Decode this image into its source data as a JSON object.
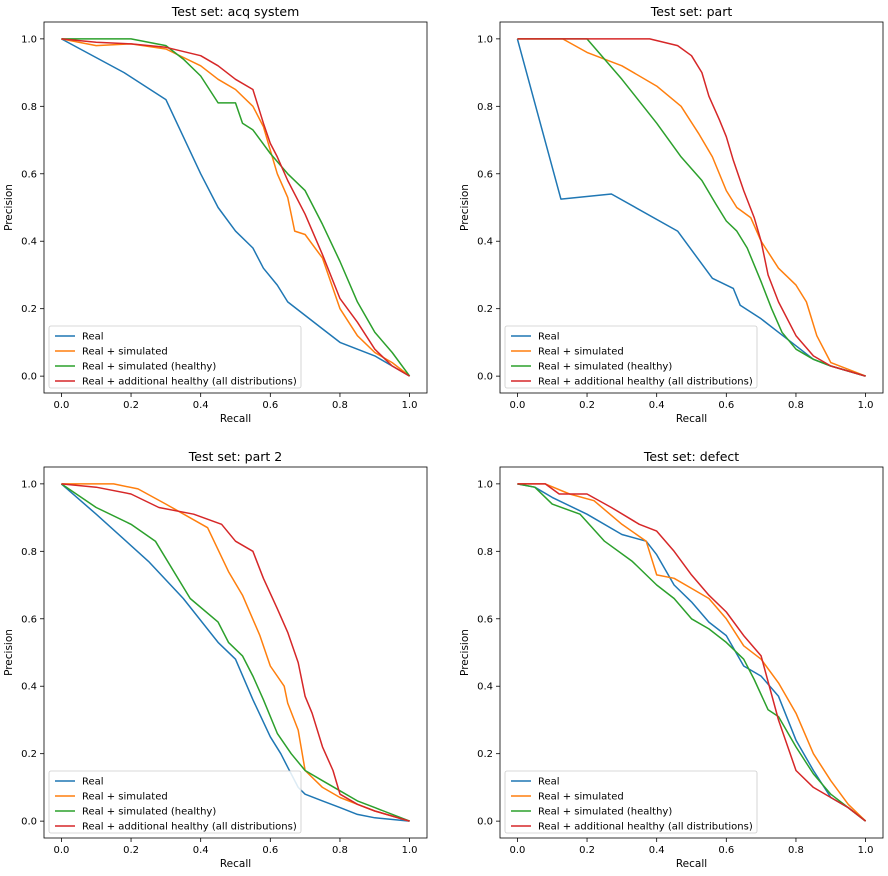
{
  "series_styles": [
    {
      "name": "Real",
      "color": "#1f77b4"
    },
    {
      "name": "Real + simulated",
      "color": "#ff7f0e"
    },
    {
      "name": "Real + simulated (healthy)",
      "color": "#2ca02c"
    },
    {
      "name": "Real + additional healthy (all distributions)",
      "color": "#d62728"
    }
  ],
  "chart_data": [
    {
      "type": "line",
      "title": "Test set: acq system",
      "xlabel": "Recall",
      "ylabel": "Precision",
      "xlim": [
        -0.05,
        1.05
      ],
      "ylim": [
        -0.05,
        1.05
      ],
      "xticks": [
        "0.0",
        "0.2",
        "0.4",
        "0.6",
        "0.8",
        "1.0"
      ],
      "yticks": [
        "0.0",
        "0.2",
        "0.4",
        "0.6",
        "0.8",
        "1.0"
      ],
      "grid": false,
      "legend": "lower-left",
      "series": [
        {
          "name": "Real",
          "color": "#1f77b4",
          "x": [
            0,
            0.18,
            0.3,
            0.4,
            0.45,
            0.5,
            0.55,
            0.58,
            0.62,
            0.65,
            0.7,
            0.75,
            0.8,
            0.85,
            0.9,
            0.95,
            1.0
          ],
          "y": [
            1.0,
            0.9,
            0.82,
            0.6,
            0.5,
            0.43,
            0.38,
            0.32,
            0.27,
            0.22,
            0.18,
            0.14,
            0.1,
            0.08,
            0.06,
            0.03,
            0.0
          ]
        },
        {
          "name": "Real + simulated",
          "color": "#ff7f0e",
          "x": [
            0,
            0.1,
            0.2,
            0.3,
            0.4,
            0.45,
            0.5,
            0.55,
            0.58,
            0.6,
            0.62,
            0.65,
            0.67,
            0.7,
            0.75,
            0.8,
            0.85,
            0.9,
            0.95,
            1.0
          ],
          "y": [
            1.0,
            0.98,
            0.985,
            0.97,
            0.92,
            0.88,
            0.85,
            0.8,
            0.74,
            0.67,
            0.6,
            0.53,
            0.43,
            0.42,
            0.35,
            0.2,
            0.12,
            0.07,
            0.04,
            0.0
          ]
        },
        {
          "name": "Real + simulated (healthy)",
          "color": "#2ca02c",
          "x": [
            0,
            0.1,
            0.2,
            0.3,
            0.35,
            0.4,
            0.45,
            0.5,
            0.52,
            0.55,
            0.6,
            0.65,
            0.7,
            0.75,
            0.8,
            0.85,
            0.9,
            0.95,
            1.0
          ],
          "y": [
            1.0,
            1.0,
            1.0,
            0.98,
            0.94,
            0.89,
            0.81,
            0.81,
            0.75,
            0.73,
            0.66,
            0.6,
            0.55,
            0.45,
            0.34,
            0.22,
            0.13,
            0.07,
            0.0
          ]
        },
        {
          "name": "Real + additional healthy (all distributions)",
          "color": "#d62728",
          "x": [
            0,
            0.1,
            0.2,
            0.3,
            0.4,
            0.45,
            0.5,
            0.55,
            0.58,
            0.6,
            0.62,
            0.65,
            0.7,
            0.75,
            0.8,
            0.85,
            0.9,
            0.95,
            1.0
          ],
          "y": [
            1.0,
            0.99,
            0.985,
            0.975,
            0.95,
            0.92,
            0.88,
            0.85,
            0.75,
            0.69,
            0.65,
            0.58,
            0.48,
            0.36,
            0.23,
            0.16,
            0.08,
            0.03,
            0.0
          ]
        }
      ]
    },
    {
      "type": "line",
      "title": "Test set: part",
      "xlabel": "Recall",
      "ylabel": "Precision",
      "xlim": [
        -0.05,
        1.05
      ],
      "ylim": [
        -0.05,
        1.05
      ],
      "xticks": [
        "0.0",
        "0.2",
        "0.4",
        "0.6",
        "0.8",
        "1.0"
      ],
      "yticks": [
        "0.0",
        "0.2",
        "0.4",
        "0.6",
        "0.8",
        "1.0"
      ],
      "grid": false,
      "legend": "lower-left",
      "series": [
        {
          "name": "Real",
          "color": "#1f77b4",
          "x": [
            0,
            0.125,
            0.27,
            0.46,
            0.56,
            0.62,
            0.64,
            0.7,
            0.75,
            0.8,
            0.85,
            0.9,
            1.0
          ],
          "y": [
            1.0,
            0.525,
            0.54,
            0.43,
            0.29,
            0.26,
            0.21,
            0.17,
            0.13,
            0.09,
            0.05,
            0.03,
            0.0
          ]
        },
        {
          "name": "Real + simulated",
          "color": "#ff7f0e",
          "x": [
            0,
            0.13,
            0.2,
            0.3,
            0.4,
            0.47,
            0.52,
            0.56,
            0.6,
            0.63,
            0.67,
            0.7,
            0.75,
            0.8,
            0.83,
            0.86,
            0.9,
            1.0
          ],
          "y": [
            1.0,
            1.0,
            0.96,
            0.92,
            0.86,
            0.8,
            0.72,
            0.65,
            0.55,
            0.5,
            0.47,
            0.4,
            0.32,
            0.27,
            0.22,
            0.12,
            0.04,
            0.0
          ]
        },
        {
          "name": "Real + simulated (healthy)",
          "color": "#2ca02c",
          "x": [
            0,
            0.2,
            0.3,
            0.4,
            0.47,
            0.53,
            0.57,
            0.6,
            0.63,
            0.66,
            0.7,
            0.73,
            0.76,
            0.8,
            0.85,
            0.9,
            1.0
          ],
          "y": [
            1.0,
            1.0,
            0.88,
            0.75,
            0.65,
            0.58,
            0.51,
            0.46,
            0.43,
            0.38,
            0.28,
            0.2,
            0.13,
            0.08,
            0.05,
            0.03,
            0.0
          ]
        },
        {
          "name": "Real + additional healthy (all distributions)",
          "color": "#d62728",
          "x": [
            0,
            0.2,
            0.38,
            0.46,
            0.5,
            0.53,
            0.55,
            0.58,
            0.6,
            0.62,
            0.65,
            0.68,
            0.7,
            0.72,
            0.75,
            0.8,
            0.85,
            0.9,
            1.0
          ],
          "y": [
            1.0,
            1.0,
            1.0,
            0.98,
            0.95,
            0.9,
            0.83,
            0.76,
            0.71,
            0.64,
            0.55,
            0.47,
            0.4,
            0.3,
            0.22,
            0.12,
            0.06,
            0.03,
            0.0
          ]
        }
      ]
    },
    {
      "type": "line",
      "title": "Test set: part 2",
      "xlabel": "Recall",
      "ylabel": "Precision",
      "xlim": [
        -0.05,
        1.05
      ],
      "ylim": [
        -0.05,
        1.05
      ],
      "xticks": [
        "0.0",
        "0.2",
        "0.4",
        "0.6",
        "0.8",
        "1.0"
      ],
      "yticks": [
        "0.0",
        "0.2",
        "0.4",
        "0.6",
        "0.8",
        "1.0"
      ],
      "grid": false,
      "legend": "lower-left",
      "series": [
        {
          "name": "Real",
          "color": "#1f77b4",
          "x": [
            0,
            0.1,
            0.25,
            0.35,
            0.45,
            0.5,
            0.55,
            0.6,
            0.63,
            0.65,
            0.68,
            0.7,
            0.75,
            0.8,
            0.85,
            0.9,
            1.0
          ],
          "y": [
            1.0,
            0.91,
            0.77,
            0.66,
            0.53,
            0.48,
            0.36,
            0.25,
            0.2,
            0.16,
            0.1,
            0.08,
            0.06,
            0.04,
            0.02,
            0.01,
            0.0
          ]
        },
        {
          "name": "Real + simulated",
          "color": "#ff7f0e",
          "x": [
            0,
            0.15,
            0.22,
            0.3,
            0.42,
            0.48,
            0.52,
            0.57,
            0.6,
            0.64,
            0.65,
            0.68,
            0.7,
            0.75,
            0.8,
            0.85,
            0.9,
            1.0
          ],
          "y": [
            1.0,
            1.0,
            0.985,
            0.94,
            0.87,
            0.74,
            0.67,
            0.55,
            0.46,
            0.4,
            0.35,
            0.27,
            0.15,
            0.1,
            0.07,
            0.05,
            0.03,
            0.0
          ]
        },
        {
          "name": "Real + simulated (healthy)",
          "color": "#2ca02c",
          "x": [
            0,
            0.1,
            0.2,
            0.27,
            0.37,
            0.45,
            0.48,
            0.52,
            0.55,
            0.58,
            0.62,
            0.66,
            0.7,
            0.75,
            0.8,
            0.85,
            0.9,
            1.0
          ],
          "y": [
            1.0,
            0.93,
            0.88,
            0.83,
            0.66,
            0.59,
            0.53,
            0.49,
            0.43,
            0.36,
            0.26,
            0.2,
            0.15,
            0.12,
            0.09,
            0.06,
            0.04,
            0.0
          ]
        },
        {
          "name": "Real + additional healthy (all distributions)",
          "color": "#d62728",
          "x": [
            0,
            0.1,
            0.2,
            0.28,
            0.38,
            0.46,
            0.5,
            0.55,
            0.58,
            0.62,
            0.65,
            0.68,
            0.7,
            0.72,
            0.75,
            0.78,
            0.8,
            0.85,
            0.9,
            1.0
          ],
          "y": [
            1.0,
            0.99,
            0.97,
            0.93,
            0.91,
            0.88,
            0.83,
            0.8,
            0.72,
            0.63,
            0.56,
            0.47,
            0.37,
            0.32,
            0.22,
            0.15,
            0.08,
            0.05,
            0.03,
            0.0
          ]
        }
      ]
    },
    {
      "type": "line",
      "title": "Test set: defect",
      "xlabel": "Recall",
      "ylabel": "Precision",
      "xlim": [
        -0.05,
        1.05
      ],
      "ylim": [
        -0.05,
        1.05
      ],
      "xticks": [
        "0.0",
        "0.2",
        "0.4",
        "0.6",
        "0.8",
        "1.0"
      ],
      "yticks": [
        "0.0",
        "0.2",
        "0.4",
        "0.6",
        "0.8",
        "1.0"
      ],
      "grid": false,
      "legend": "lower-left",
      "series": [
        {
          "name": "Real",
          "color": "#1f77b4",
          "x": [
            0,
            0.05,
            0.1,
            0.2,
            0.3,
            0.37,
            0.4,
            0.45,
            0.5,
            0.55,
            0.6,
            0.65,
            0.7,
            0.75,
            0.8,
            0.85,
            0.9,
            0.95,
            1.0
          ],
          "y": [
            1.0,
            0.99,
            0.96,
            0.91,
            0.85,
            0.83,
            0.79,
            0.7,
            0.65,
            0.59,
            0.55,
            0.46,
            0.43,
            0.37,
            0.24,
            0.15,
            0.07,
            0.04,
            0.0
          ]
        },
        {
          "name": "Real + simulated",
          "color": "#ff7f0e",
          "x": [
            0,
            0.08,
            0.15,
            0.22,
            0.3,
            0.37,
            0.4,
            0.45,
            0.5,
            0.55,
            0.6,
            0.65,
            0.7,
            0.75,
            0.8,
            0.85,
            0.9,
            0.95,
            1.0
          ],
          "y": [
            1.0,
            1.0,
            0.97,
            0.95,
            0.88,
            0.83,
            0.73,
            0.72,
            0.69,
            0.66,
            0.6,
            0.52,
            0.48,
            0.41,
            0.32,
            0.2,
            0.12,
            0.05,
            0.0
          ]
        },
        {
          "name": "Real + simulated (healthy)",
          "color": "#2ca02c",
          "x": [
            0,
            0.05,
            0.1,
            0.18,
            0.25,
            0.33,
            0.4,
            0.45,
            0.5,
            0.55,
            0.6,
            0.65,
            0.68,
            0.72,
            0.75,
            0.8,
            0.85,
            0.9,
            0.95,
            1.0
          ],
          "y": [
            1.0,
            0.99,
            0.94,
            0.91,
            0.83,
            0.77,
            0.7,
            0.66,
            0.6,
            0.57,
            0.53,
            0.48,
            0.42,
            0.33,
            0.31,
            0.22,
            0.14,
            0.08,
            0.04,
            0.0
          ]
        },
        {
          "name": "Real + additional healthy (all distributions)",
          "color": "#d62728",
          "x": [
            0,
            0.08,
            0.12,
            0.2,
            0.27,
            0.35,
            0.4,
            0.45,
            0.5,
            0.55,
            0.6,
            0.65,
            0.7,
            0.75,
            0.8,
            0.85,
            0.9,
            0.95,
            1.0
          ],
          "y": [
            1.0,
            1.0,
            0.97,
            0.97,
            0.93,
            0.88,
            0.86,
            0.8,
            0.73,
            0.67,
            0.62,
            0.55,
            0.49,
            0.3,
            0.15,
            0.1,
            0.07,
            0.04,
            0.0
          ]
        }
      ]
    }
  ]
}
